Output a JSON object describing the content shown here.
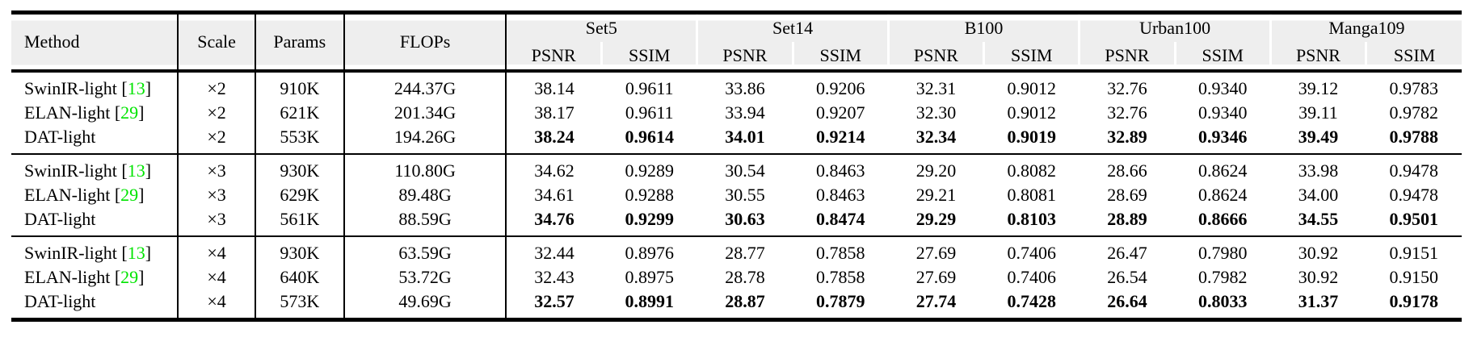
{
  "table": {
    "colors": {
      "citation_green": "#00e400",
      "header_bg": "#eeeeee",
      "rule_black": "#000000",
      "page_background": "#ffffff"
    },
    "citation_format": {
      "open": "[",
      "close": "]"
    },
    "header": {
      "fixed_columns": [
        "Method",
        "Scale",
        "Params",
        "FLOPs"
      ],
      "datasets": [
        "Set5",
        "Set14",
        "B100",
        "Urban100",
        "Manga109"
      ],
      "metrics": [
        "PSNR",
        "SSIM"
      ]
    },
    "groups": [
      {
        "scale": "×2",
        "rows": [
          {
            "method": "SwinIR-light",
            "citation": "13",
            "scale": "×2",
            "params": "910K",
            "flops": "244.37G",
            "best": false,
            "values": [
              "38.14",
              "0.9611",
              "33.86",
              "0.9206",
              "32.31",
              "0.9012",
              "32.76",
              "0.9340",
              "39.12",
              "0.9783"
            ]
          },
          {
            "method": "ELAN-light",
            "citation": "29",
            "scale": "×2",
            "params": "621K",
            "flops": "201.34G",
            "best": false,
            "values": [
              "38.17",
              "0.9611",
              "33.94",
              "0.9207",
              "32.30",
              "0.9012",
              "32.76",
              "0.9340",
              "39.11",
              "0.9782"
            ]
          },
          {
            "method": "DAT-light",
            "citation": null,
            "scale": "×2",
            "params": "553K",
            "flops": "194.26G",
            "best": true,
            "values": [
              "38.24",
              "0.9614",
              "34.01",
              "0.9214",
              "32.34",
              "0.9019",
              "32.89",
              "0.9346",
              "39.49",
              "0.9788"
            ]
          }
        ]
      },
      {
        "scale": "×3",
        "rows": [
          {
            "method": "SwinIR-light",
            "citation": "13",
            "scale": "×3",
            "params": "930K",
            "flops": "110.80G",
            "best": false,
            "values": [
              "34.62",
              "0.9289",
              "30.54",
              "0.8463",
              "29.20",
              "0.8082",
              "28.66",
              "0.8624",
              "33.98",
              "0.9478"
            ]
          },
          {
            "method": "ELAN-light",
            "citation": "29",
            "scale": "×3",
            "params": "629K",
            "flops": "89.48G",
            "best": false,
            "values": [
              "34.61",
              "0.9288",
              "30.55",
              "0.8463",
              "29.21",
              "0.8081",
              "28.69",
              "0.8624",
              "34.00",
              "0.9478"
            ]
          },
          {
            "method": "DAT-light",
            "citation": null,
            "scale": "×3",
            "params": "561K",
            "flops": "88.59G",
            "best": true,
            "values": [
              "34.76",
              "0.9299",
              "30.63",
              "0.8474",
              "29.29",
              "0.8103",
              "28.89",
              "0.8666",
              "34.55",
              "0.9501"
            ]
          }
        ]
      },
      {
        "scale": "×4",
        "rows": [
          {
            "method": "SwinIR-light",
            "citation": "13",
            "scale": "×4",
            "params": "930K",
            "flops": "63.59G",
            "best": false,
            "values": [
              "32.44",
              "0.8976",
              "28.77",
              "0.7858",
              "27.69",
              "0.7406",
              "26.47",
              "0.7980",
              "30.92",
              "0.9151"
            ]
          },
          {
            "method": "ELAN-light",
            "citation": "29",
            "scale": "×4",
            "params": "640K",
            "flops": "53.72G",
            "best": false,
            "values": [
              "32.43",
              "0.8975",
              "28.78",
              "0.7858",
              "27.69",
              "0.7406",
              "26.54",
              "0.7982",
              "30.92",
              "0.9150"
            ]
          },
          {
            "method": "DAT-light",
            "citation": null,
            "scale": "×4",
            "params": "573K",
            "flops": "49.69G",
            "best": true,
            "values": [
              "32.57",
              "0.8991",
              "28.87",
              "0.7879",
              "27.74",
              "0.7428",
              "26.64",
              "0.8033",
              "31.37",
              "0.9178"
            ]
          }
        ]
      }
    ]
  }
}
